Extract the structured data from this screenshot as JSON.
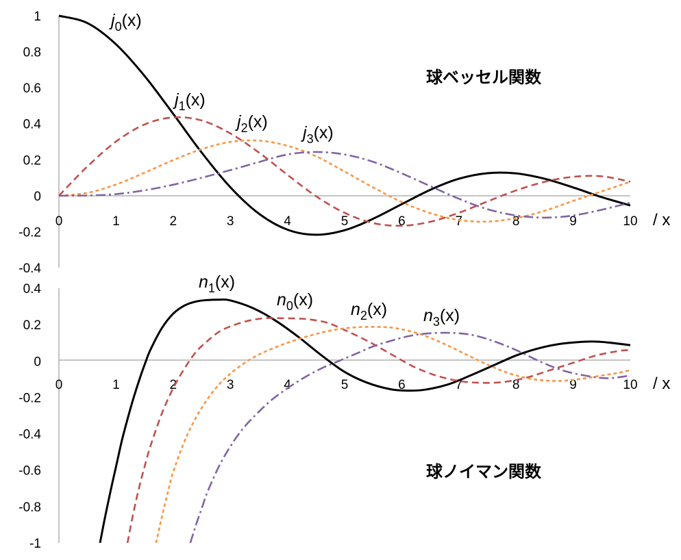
{
  "chart_data": [
    {
      "type": "line",
      "title": "球ベッセル関数",
      "x_unit_label": "/ x",
      "xlim": [
        0,
        10
      ],
      "ylim": [
        -0.4,
        1
      ],
      "x_ticks": [
        "0",
        "1",
        "2",
        "3",
        "4",
        "5",
        "6",
        "7",
        "8",
        "9",
        "10"
      ],
      "y_ticks": [
        "1",
        "0.8",
        "0.6",
        "0.4",
        "0.2",
        "0",
        "-0.2",
        "-0.4"
      ],
      "grid": false,
      "x": [
        0,
        0.5,
        1,
        1.5,
        2,
        2.5,
        3,
        3.5,
        4,
        4.5,
        5,
        5.5,
        6,
        6.5,
        7,
        7.5,
        8,
        8.5,
        9,
        9.5,
        10
      ],
      "series": [
        {
          "name_base": "j",
          "name_sub": "0",
          "name_tail": "(x)",
          "color": "#000000",
          "dash": "solid",
          "values": [
            1.0,
            0.959,
            0.841,
            0.665,
            0.455,
            0.239,
            0.047,
            -0.1,
            -0.189,
            -0.217,
            -0.192,
            -0.128,
            -0.047,
            0.033,
            0.094,
            0.125,
            0.124,
            0.094,
            0.046,
            -0.008,
            -0.054
          ]
        },
        {
          "name_base": "j",
          "name_sub": "1",
          "name_tail": "(x)",
          "color": "#C0504D",
          "dash": "dashed",
          "values": [
            0.0,
            0.163,
            0.301,
            0.396,
            0.435,
            0.418,
            0.346,
            0.24,
            0.116,
            -0.003,
            -0.095,
            -0.152,
            -0.167,
            -0.145,
            -0.095,
            -0.032,
            0.029,
            0.077,
            0.105,
            0.108,
            0.078
          ]
        },
        {
          "name_base": "j",
          "name_sub": "2",
          "name_tail": "(x)",
          "color": "#F79646",
          "dash": "dotted",
          "values": [
            0.0,
            0.016,
            0.062,
            0.128,
            0.198,
            0.259,
            0.299,
            0.306,
            0.277,
            0.219,
            0.134,
            0.046,
            -0.035,
            -0.097,
            -0.135,
            -0.144,
            -0.125,
            -0.084,
            -0.029,
            0.024,
            0.077
          ]
        },
        {
          "name_base": "j",
          "name_sub": "3",
          "name_tail": "(x)",
          "color": "#8064A2",
          "dash": "dashdot",
          "values": [
            0.0,
            0.001,
            0.009,
            0.03,
            0.061,
            0.1,
            0.142,
            0.187,
            0.229,
            0.243,
            0.229,
            0.188,
            0.124,
            0.053,
            -0.017,
            -0.075,
            -0.11,
            -0.122,
            -0.11,
            -0.078,
            -0.039
          ]
        }
      ]
    },
    {
      "type": "line",
      "title": "球ノイマン関数",
      "x_unit_label": "/ x",
      "xlim": [
        0,
        10
      ],
      "ylim": [
        -1,
        0.4
      ],
      "x_ticks": [
        "0",
        "1",
        "2",
        "3",
        "4",
        "5",
        "6",
        "7",
        "8",
        "9",
        "10"
      ],
      "y_ticks": [
        "0.4",
        "0.2",
        "0",
        "-0.2",
        "-0.4",
        "-0.6",
        "-0.8",
        "-1"
      ],
      "grid": false,
      "series": [
        {
          "name_base": "n",
          "name_sub": "1",
          "name_tail": "(x)",
          "color": "#000000",
          "dash": "solid",
          "x": [
            0.72,
            0.8,
            0.9,
            1.0,
            1.1,
            1.2,
            1.3,
            1.4,
            1.5,
            1.6,
            1.8,
            2.0,
            2.2,
            2.4,
            2.6,
            2.8,
            3.0,
            3.4,
            3.8,
            4.2,
            4.6,
            5.0,
            5.4,
            5.8,
            6.1,
            6.4,
            6.8,
            7.2,
            7.6,
            8.0,
            8.4,
            8.8,
            9.3,
            9.6,
            10.0
          ],
          "values": [
            -1.0,
            -0.87,
            -0.72,
            -0.58,
            -0.44,
            -0.32,
            -0.21,
            -0.11,
            -0.02,
            0.06,
            0.18,
            0.26,
            0.305,
            0.327,
            0.335,
            0.337,
            0.333,
            0.29,
            0.22,
            0.13,
            0.03,
            -0.06,
            -0.12,
            -0.155,
            -0.163,
            -0.158,
            -0.13,
            -0.08,
            -0.025,
            0.03,
            0.07,
            0.095,
            0.107,
            0.102,
            0.087
          ]
        },
        {
          "name_base": "n",
          "name_sub": "0",
          "name_tail": "(x)",
          "color": "#C0504D",
          "dash": "dashed",
          "x": [
            1.2,
            1.3,
            1.4,
            1.5,
            1.6,
            1.8,
            2.0,
            2.2,
            2.4,
            2.6,
            2.8,
            3.0,
            3.3,
            3.6,
            3.9,
            4.2,
            4.4,
            4.7,
            5.0,
            5.4,
            5.8,
            6.2,
            6.6,
            7.0,
            7.4,
            7.8,
            8.2,
            8.6,
            9.0,
            9.4,
            9.8,
            10.0
          ],
          "values": [
            -1.0,
            -0.84,
            -0.7,
            -0.58,
            -0.47,
            -0.29,
            -0.15,
            -0.04,
            0.05,
            0.11,
            0.16,
            0.19,
            0.22,
            0.235,
            0.235,
            0.233,
            0.228,
            0.21,
            0.17,
            0.11,
            0.04,
            -0.03,
            -0.08,
            -0.11,
            -0.12,
            -0.115,
            -0.09,
            -0.05,
            -0.01,
            0.03,
            0.055,
            0.06
          ]
        },
        {
          "name_base": "n",
          "name_sub": "2",
          "name_tail": "(x)",
          "color": "#F79646",
          "dash": "dotted",
          "x": [
            1.7,
            1.8,
            1.9,
            2.0,
            2.2,
            2.4,
            2.6,
            2.8,
            3.0,
            3.3,
            3.6,
            4.0,
            4.4,
            4.8,
            5.2,
            5.6,
            5.9,
            6.3,
            6.7,
            7.1,
            7.5,
            7.9,
            8.3,
            8.7,
            9.1,
            9.5,
            9.8,
            10.0
          ],
          "values": [
            -1.0,
            -0.86,
            -0.73,
            -0.61,
            -0.44,
            -0.31,
            -0.21,
            -0.13,
            -0.07,
            0.0,
            0.05,
            0.1,
            0.14,
            0.17,
            0.185,
            0.187,
            0.18,
            0.15,
            0.1,
            0.04,
            -0.02,
            -0.07,
            -0.1,
            -0.11,
            -0.1,
            -0.08,
            -0.065,
            -0.05
          ]
        },
        {
          "name_base": "n",
          "name_sub": "3",
          "name_tail": "(x)",
          "color": "#8064A2",
          "dash": "dashdot",
          "x": [
            2.3,
            2.4,
            2.5,
            2.6,
            2.8,
            3.0,
            3.2,
            3.4,
            3.7,
            4.0,
            4.3,
            4.6,
            4.9,
            5.2,
            5.5,
            5.8,
            6.1,
            6.4,
            6.8,
            7.2,
            7.6,
            8.0,
            8.4,
            8.8,
            9.2,
            9.6,
            10.0
          ],
          "values": [
            -1.0,
            -0.9,
            -0.81,
            -0.72,
            -0.58,
            -0.47,
            -0.38,
            -0.31,
            -0.22,
            -0.15,
            -0.09,
            -0.04,
            0.0,
            0.04,
            0.08,
            0.11,
            0.135,
            0.15,
            0.155,
            0.145,
            0.11,
            0.06,
            0.0,
            -0.05,
            -0.08,
            -0.095,
            -0.08
          ]
        }
      ]
    }
  ]
}
